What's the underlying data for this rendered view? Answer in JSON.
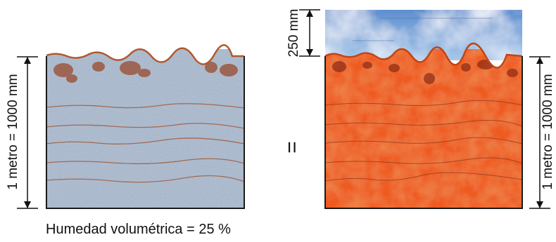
{
  "left_panel": {
    "height_label": "1 metro = 1000 mm",
    "caption": "Humedad volumétrica = 25 %"
  },
  "equals_symbol": "=",
  "right_panel": {
    "water_label": "250 mm",
    "height_label": "1 metro = 1000 mm"
  },
  "colors": {
    "soil_blue": "#b4c1d2",
    "soil_orange": "#ee5a20",
    "water_blue": "#6f9fd6",
    "horizon_line": "#a05c3c"
  }
}
